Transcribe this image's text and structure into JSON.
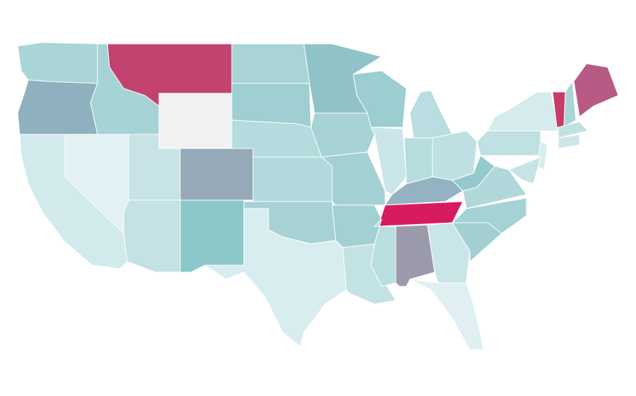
{
  "map": {
    "regions": [
      {
        "color": "#a9d5d7"
      },
      {
        "color": "#8fb0bf"
      },
      {
        "color": "#d3eaec"
      },
      {
        "color": "#e2f1f3"
      },
      {
        "color": "#a6d3d5"
      },
      {
        "color": "#c2436f"
      },
      {
        "color": "#f0f2f4"
      },
      {
        "color": "#c7e3e5"
      },
      {
        "color": "#96a9b8"
      },
      {
        "color": "#c4e2e4"
      },
      {
        "color": "#8cc8ca"
      },
      {
        "color": "#a8d4d6"
      },
      {
        "color": "#9fcfd2"
      },
      {
        "color": "#b4dbdd"
      },
      {
        "color": "#b2dadc"
      },
      {
        "color": "#a6d2d5"
      },
      {
        "color": "#d8edef"
      },
      {
        "color": "#90c3c7"
      },
      {
        "color": "#a7d3d5"
      },
      {
        "color": "#a4d1d4"
      },
      {
        "color": "#a3d0d3"
      },
      {
        "color": "#c3e2e4"
      },
      {
        "color": "#9bcdd1"
      },
      {
        "color": "#cbe6e8"
      },
      {
        "color": "#b9dde0"
      },
      {
        "color": "#b6dcde"
      },
      {
        "color": "#bee0e2"
      },
      {
        "color": "#93b3c3"
      },
      {
        "color": "#d81b60"
      },
      {
        "color": "#b9dee0"
      },
      {
        "color": "#9b9aad"
      },
      {
        "color": "#c9e5e7"
      },
      {
        "color": "#e0f0f2"
      },
      {
        "color": "#a1cfd2"
      },
      {
        "color": "#a5d2d5"
      },
      {
        "color": "#b0d8db"
      },
      {
        "color": "#94c9cd"
      },
      {
        "color": "#bfe1e3"
      },
      {
        "color": "#d5ebed"
      },
      {
        "color": "#c83a6a"
      },
      {
        "color": "#a9d5d8"
      },
      {
        "color": "#b85a86"
      },
      {
        "color": "#c2e1e3"
      },
      {
        "color": "#cde7e9"
      },
      {
        "color": "#d9edef"
      },
      {
        "color": "#c6e4e6"
      }
    ]
  }
}
